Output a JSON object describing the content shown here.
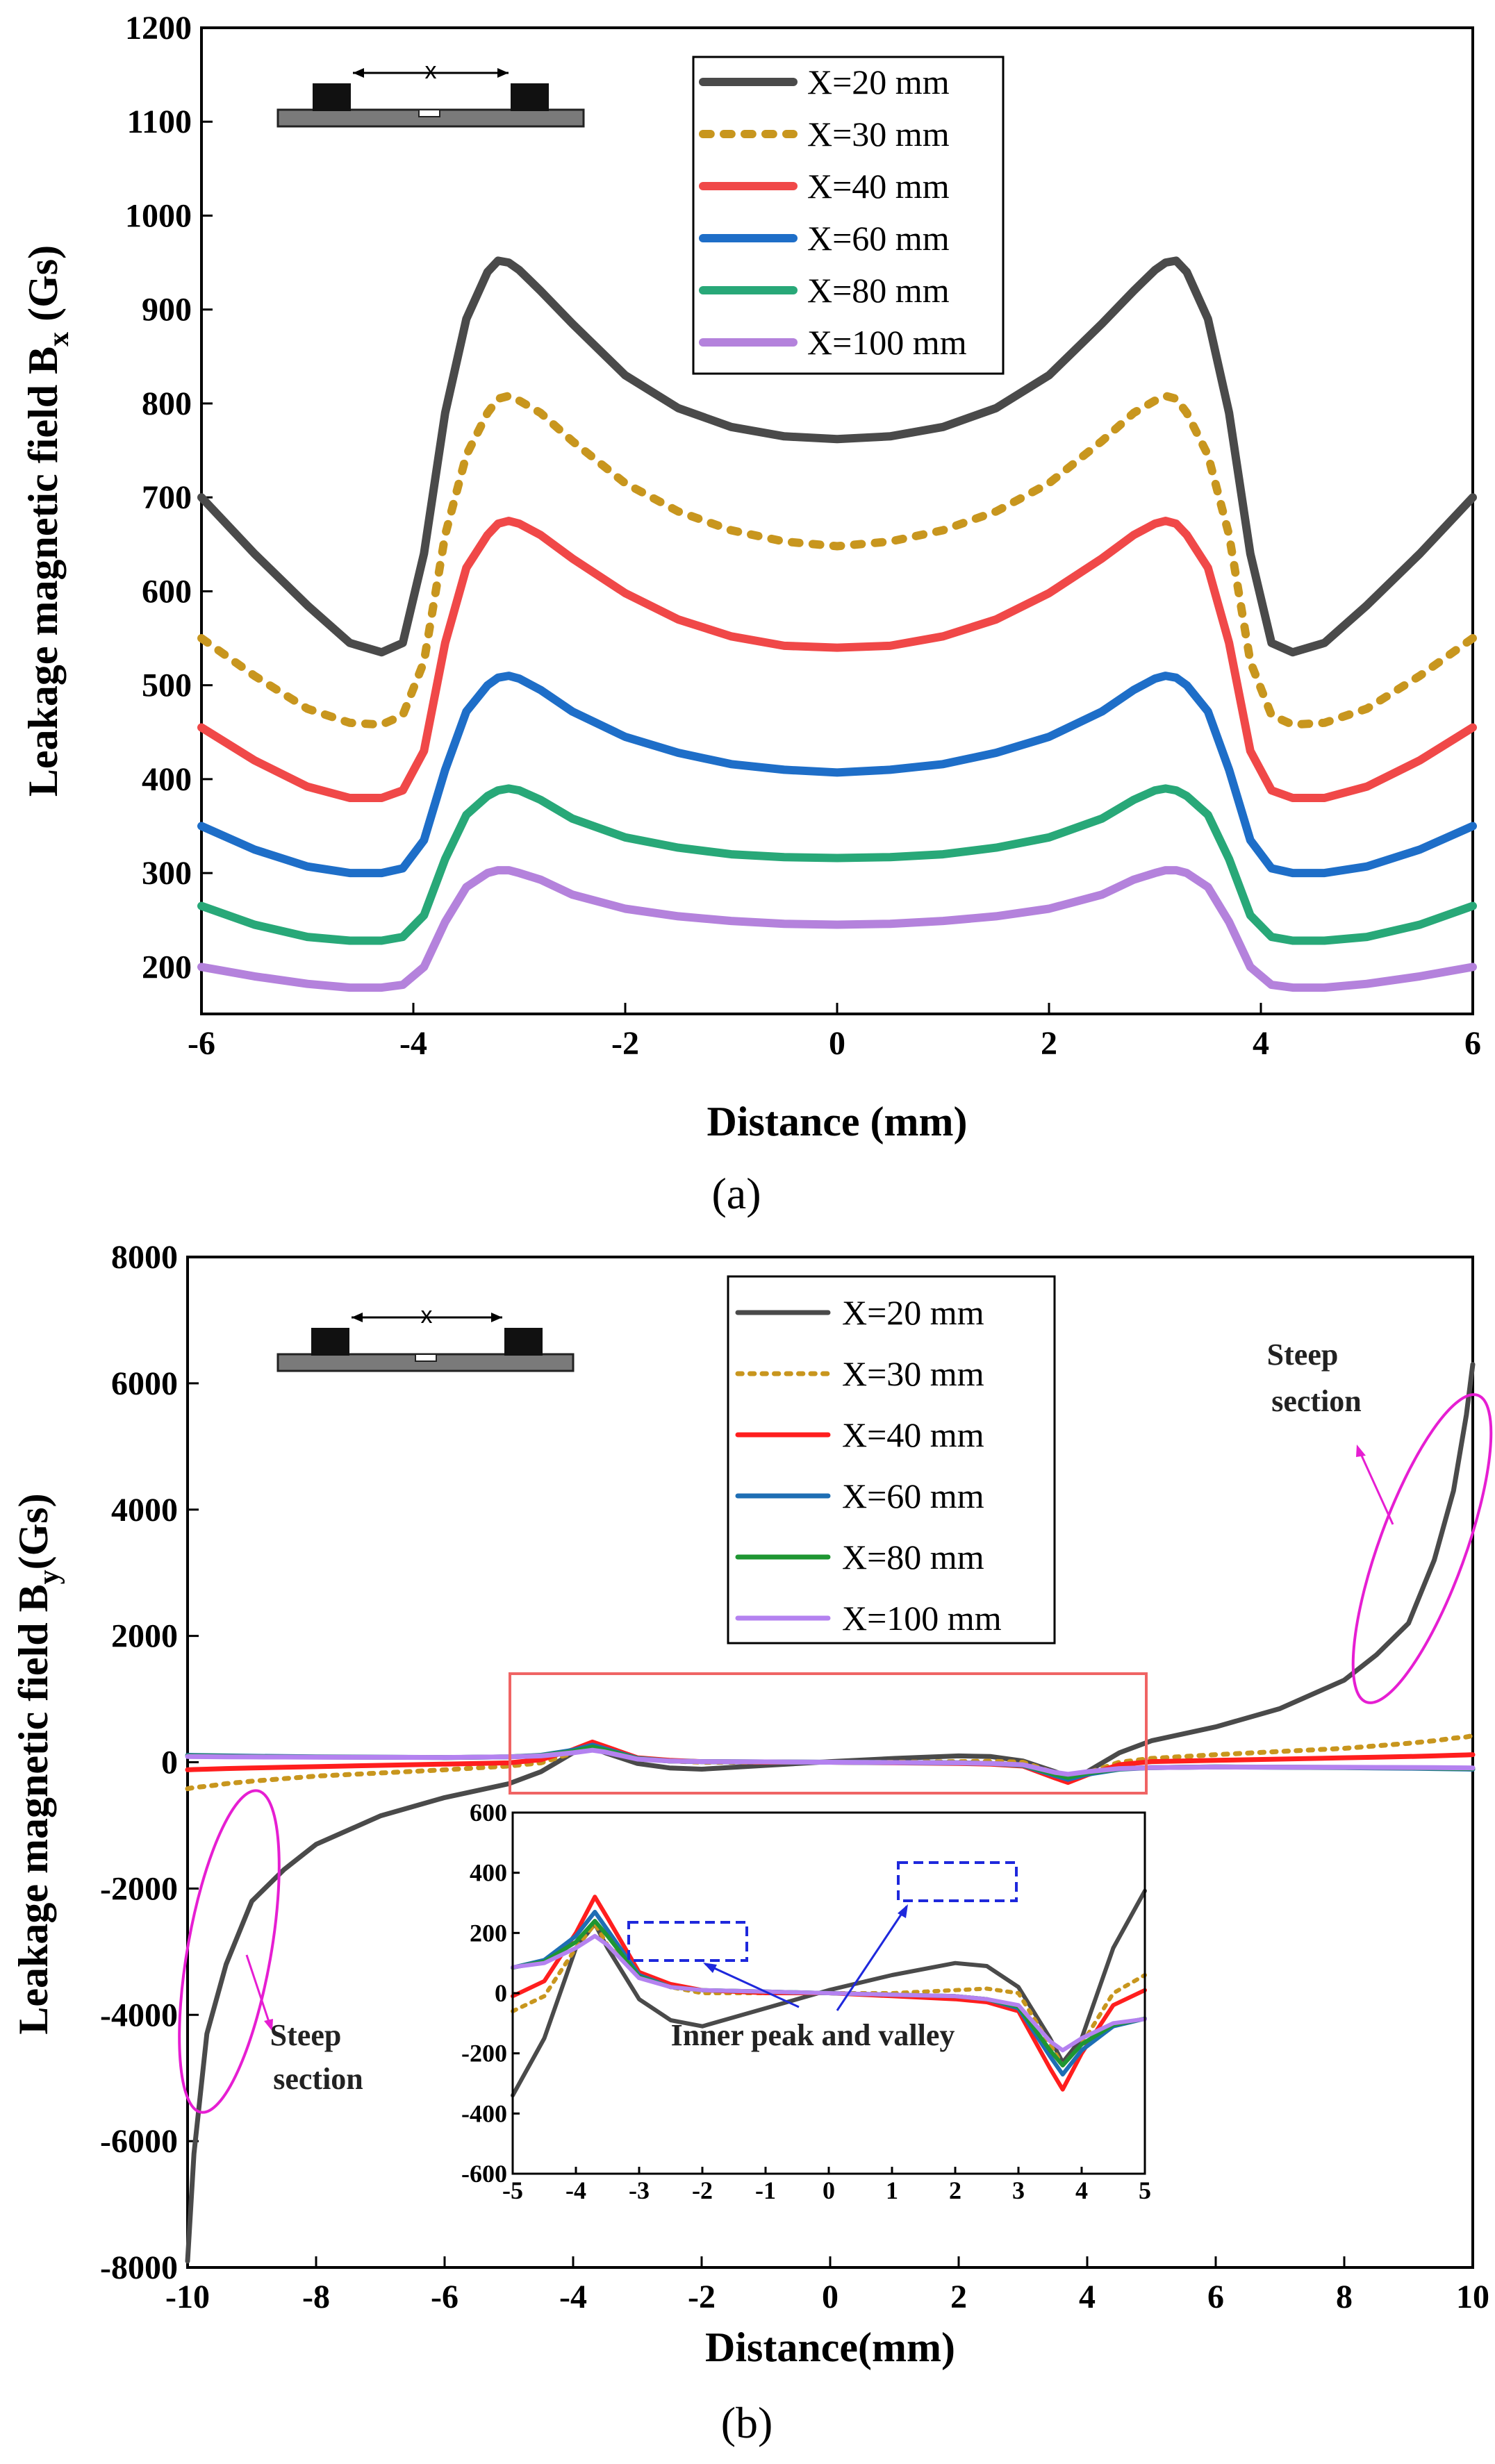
{
  "chart_data": [
    {
      "id": "a",
      "type": "line",
      "caption": "(a)",
      "xlabel": "Distance (mm)",
      "ylabel_main": "Leakage magnetic field B",
      "ylabel_sub": "x",
      "ylabel_unit": " (Gs)",
      "xlim": [
        -6,
        6
      ],
      "ylim": [
        150,
        1200
      ],
      "xticks": [
        -6,
        -4,
        -2,
        0,
        2,
        4,
        6
      ],
      "yticks": [
        200,
        300,
        400,
        500,
        600,
        700,
        800,
        900,
        1000,
        1100,
        1200
      ],
      "x": [
        -6,
        -5.5,
        -5,
        -4.6,
        -4.3,
        -4.1,
        -3.9,
        -3.7,
        -3.5,
        -3.3,
        -3.2,
        -3.1,
        -3.0,
        -2.8,
        -2.5,
        -2.0,
        -1.5,
        -1.0,
        -0.5,
        0,
        0.5,
        1.0,
        1.5,
        2.0,
        2.5,
        2.8,
        3.0,
        3.1,
        3.2,
        3.3,
        3.5,
        3.7,
        3.9,
        4.1,
        4.3,
        4.6,
        5.0,
        5.5,
        6.0
      ],
      "series": [
        {
          "name": "X=20 mm",
          "color": "#4a4a4a",
          "dash": "solid",
          "values": [
            700,
            640,
            585,
            545,
            535,
            545,
            640,
            790,
            890,
            940,
            952,
            950,
            942,
            920,
            885,
            830,
            795,
            775,
            765,
            762,
            765,
            775,
            795,
            830,
            885,
            920,
            942,
            950,
            952,
            940,
            890,
            790,
            640,
            545,
            535,
            545,
            585,
            640,
            700
          ]
        },
        {
          "name": "X=30 mm",
          "color": "#c8961e",
          "dash": "dot",
          "values": [
            550,
            510,
            475,
            460,
            458,
            468,
            525,
            660,
            745,
            790,
            805,
            808,
            803,
            790,
            760,
            715,
            685,
            665,
            653,
            648,
            653,
            665,
            685,
            715,
            760,
            790,
            803,
            808,
            805,
            790,
            745,
            660,
            525,
            468,
            458,
            460,
            475,
            510,
            550
          ]
        },
        {
          "name": "X=40 mm",
          "color": "#f04848",
          "dash": "solid",
          "values": [
            455,
            420,
            392,
            380,
            380,
            388,
            430,
            545,
            625,
            660,
            672,
            675,
            672,
            660,
            635,
            598,
            570,
            552,
            542,
            540,
            542,
            552,
            570,
            598,
            635,
            660,
            672,
            675,
            672,
            660,
            625,
            545,
            430,
            388,
            380,
            380,
            392,
            420,
            455
          ]
        },
        {
          "name": "X=60 mm",
          "color": "#1e6ec8",
          "dash": "solid",
          "values": [
            350,
            325,
            307,
            300,
            300,
            305,
            335,
            410,
            472,
            500,
            508,
            510,
            507,
            495,
            472,
            445,
            428,
            416,
            410,
            407,
            410,
            416,
            428,
            445,
            472,
            495,
            507,
            510,
            508,
            500,
            472,
            410,
            335,
            305,
            300,
            300,
            307,
            325,
            350
          ]
        },
        {
          "name": "X=80 mm",
          "color": "#28a878",
          "dash": "solid",
          "values": [
            265,
            245,
            232,
            228,
            228,
            232,
            255,
            315,
            362,
            382,
            388,
            390,
            388,
            378,
            358,
            338,
            327,
            320,
            317,
            316,
            317,
            320,
            327,
            338,
            358,
            378,
            388,
            390,
            388,
            382,
            362,
            315,
            255,
            232,
            228,
            228,
            232,
            245,
            265
          ]
        },
        {
          "name": "X=100 mm",
          "color": "#b482dc",
          "dash": "solid",
          "values": [
            200,
            190,
            182,
            178,
            178,
            181,
            200,
            248,
            285,
            300,
            303,
            303,
            300,
            293,
            277,
            262,
            254,
            249,
            246,
            245,
            246,
            249,
            254,
            262,
            277,
            293,
            300,
            303,
            303,
            300,
            285,
            248,
            200,
            181,
            178,
            178,
            182,
            190,
            200
          ]
        }
      ]
    },
    {
      "id": "b",
      "type": "line",
      "caption": "(b)",
      "xlabel": "Distance(mm)",
      "ylabel_main": "Leakage magnetic field B",
      "ylabel_sub": "y",
      "ylabel_unit": "(Gs)",
      "xlim": [
        -10,
        10
      ],
      "ylim": [
        -8000,
        8000
      ],
      "xticks": [
        -10,
        -8,
        -6,
        -4,
        -2,
        0,
        2,
        4,
        6,
        8,
        10
      ],
      "yticks": [
        -8000,
        -6000,
        -4000,
        -2000,
        0,
        2000,
        4000,
        6000,
        8000
      ],
      "x": [
        -10,
        -9.9,
        -9.7,
        -9.4,
        -9.0,
        -8.5,
        -8.0,
        -7.0,
        -6.0,
        -5.0,
        -4.5,
        -4.0,
        -3.7,
        -3.5,
        -3.0,
        -2.5,
        -2.0,
        -1.0,
        0,
        1.0,
        2.0,
        2.5,
        3.0,
        3.5,
        3.7,
        4.0,
        4.5,
        5.0,
        6.0,
        7.0,
        8.0,
        8.5,
        9.0,
        9.4,
        9.7,
        9.9,
        10
      ],
      "series": [
        {
          "name": "X=20 mm",
          "color": "#4a4a4a",
          "dash": "solid",
          "values": [
            -7900,
            -6200,
            -4300,
            -3200,
            -2200,
            -1700,
            -1300,
            -850,
            -560,
            -340,
            -150,
            150,
            230,
            150,
            -20,
            -90,
            -110,
            -50,
            10,
            60,
            100,
            90,
            20,
            -150,
            -230,
            -150,
            150,
            340,
            560,
            850,
            1300,
            1700,
            2200,
            3200,
            4300,
            5500,
            6300
          ]
        },
        {
          "name": "X=30 mm",
          "color": "#c8961e",
          "dash": "dot",
          "values": [
            -420,
            -400,
            -380,
            -340,
            -300,
            -260,
            -220,
            -170,
            -120,
            -60,
            -10,
            150,
            230,
            160,
            60,
            20,
            0,
            0,
            0,
            0,
            10,
            15,
            0,
            -170,
            -240,
            -170,
            0,
            60,
            120,
            170,
            220,
            260,
            300,
            340,
            380,
            400,
            420
          ]
        },
        {
          "name": "X=40 mm",
          "color": "#ff1e1e",
          "dash": "solid",
          "values": [
            -120,
            -115,
            -110,
            -100,
            -90,
            -80,
            -70,
            -50,
            -30,
            -10,
            40,
            200,
            320,
            250,
            70,
            30,
            10,
            0,
            0,
            -10,
            -20,
            -30,
            -60,
            -250,
            -320,
            -200,
            -40,
            10,
            30,
            50,
            70,
            80,
            90,
            100,
            110,
            115,
            120
          ]
        },
        {
          "name": "X=60 mm",
          "color": "#1e6eb4",
          "dash": "solid",
          "values": [
            110,
            108,
            105,
            100,
            95,
            90,
            85,
            80,
            75,
            85,
            110,
            190,
            270,
            210,
            60,
            20,
            10,
            5,
            0,
            -5,
            -10,
            -20,
            -50,
            -210,
            -270,
            -190,
            -110,
            -85,
            -75,
            -80,
            -85,
            -90,
            -95,
            -100,
            -105,
            -108,
            -110
          ]
        },
        {
          "name": "X=80 mm",
          "color": "#1e9632",
          "dash": "solid",
          "values": [
            100,
            98,
            96,
            92,
            88,
            85,
            82,
            78,
            75,
            85,
            105,
            170,
            240,
            190,
            55,
            20,
            10,
            5,
            0,
            -5,
            -10,
            -20,
            -45,
            -190,
            -240,
            -170,
            -105,
            -85,
            -75,
            -78,
            -82,
            -85,
            -88,
            -92,
            -96,
            -98,
            -100
          ]
        },
        {
          "name": "X=100 mm",
          "color": "#b482f0",
          "dash": "solid",
          "values": [
            90,
            89,
            88,
            86,
            84,
            82,
            80,
            78,
            76,
            86,
            100,
            150,
            190,
            160,
            50,
            20,
            10,
            5,
            0,
            -5,
            -10,
            -20,
            -40,
            -160,
            -190,
            -150,
            -100,
            -86,
            -76,
            -78,
            -80,
            -82,
            -84,
            -86,
            -88,
            -89,
            -90
          ]
        }
      ],
      "inset": {
        "xlim": [
          -5,
          5
        ],
        "ylim": [
          -600,
          600
        ],
        "xticks": [
          -5,
          -4,
          -3,
          -2,
          -1,
          0,
          1,
          2,
          3,
          4,
          5
        ],
        "yticks": [
          -600,
          -400,
          -200,
          0,
          200,
          400,
          600
        ]
      },
      "annotations": {
        "steep_left_line1": "Steep",
        "steep_left_line2": "section",
        "steep_right_line1": "Steep",
        "steep_right_line2": "section",
        "inner": "Inner peak and valley"
      }
    }
  ],
  "schematic": {
    "label": "x"
  },
  "colors": {
    "annotation_magenta": "#e61ed2",
    "annotation_blue": "#1e28dc",
    "zoom_box": "#f06464"
  }
}
